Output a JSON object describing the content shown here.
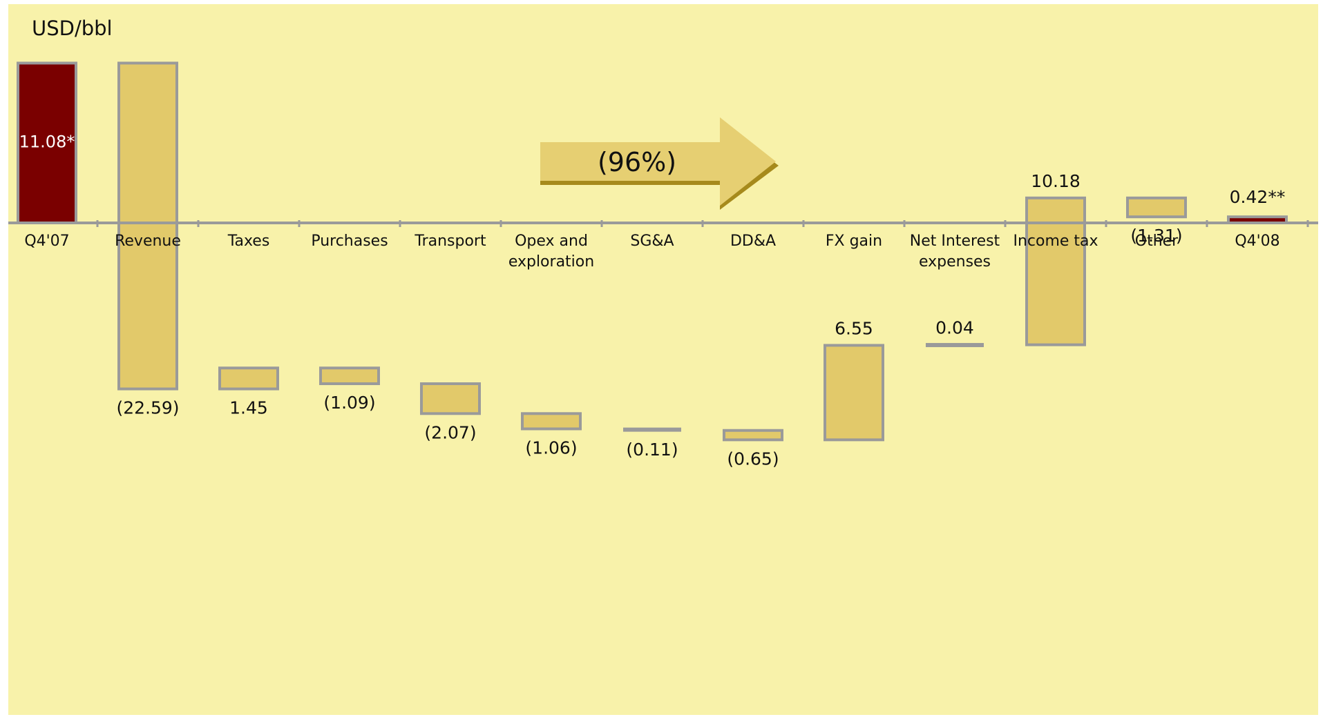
{
  "unit_label": "USD/bbl",
  "change_label": "(96%)",
  "colors": {
    "background": "#f8f2aa",
    "total_bar": "#7a0000",
    "delta_bar": "#e2c96a",
    "bar_outline": "#9a9a9a",
    "arrow_fill": "#e6cf72",
    "arrow_shadow": "#a68a1c"
  },
  "chart_data": {
    "type": "bar",
    "subtype": "waterfall",
    "ylabel": "USD/bbl",
    "categories": [
      [
        "Q4'07"
      ],
      [
        "Revenue"
      ],
      [
        "Taxes"
      ],
      [
        "Purchases"
      ],
      [
        "Transport"
      ],
      [
        "Opex and",
        "exploration"
      ],
      [
        "SG&A"
      ],
      [
        "DD&A"
      ],
      [
        "FX gain"
      ],
      [
        "Net Interest",
        "expenses"
      ],
      [
        "Income tax"
      ],
      [
        "Other"
      ],
      [
        "Q4'08"
      ]
    ],
    "bars": [
      {
        "kind": "total",
        "start": 0,
        "end": 11.08,
        "label": "11.08*"
      },
      {
        "kind": "delta",
        "start": 11.08,
        "end": -11.51,
        "label": "(22.59)"
      },
      {
        "kind": "delta",
        "start": -10.06,
        "end": -11.51,
        "label": "1.45"
      },
      {
        "kind": "delta",
        "start": -10.06,
        "end": -11.15,
        "label": "(1.09)"
      },
      {
        "kind": "delta",
        "start": -11.15,
        "end": -13.22,
        "label": "(2.07)"
      },
      {
        "kind": "delta",
        "start": -13.22,
        "end": -14.28,
        "label": "(1.06)"
      },
      {
        "kind": "delta",
        "start": -14.28,
        "end": -14.39,
        "label": "(0.11)"
      },
      {
        "kind": "delta",
        "start": -14.39,
        "end": -15.04,
        "label": "(0.65)"
      },
      {
        "kind": "delta",
        "start": -15.04,
        "end": -8.49,
        "label": "6.55"
      },
      {
        "kind": "delta",
        "start": -8.49,
        "end": -8.45,
        "label": "0.04"
      },
      {
        "kind": "delta",
        "start": -8.45,
        "end": 1.73,
        "label": "10.18"
      },
      {
        "kind": "delta",
        "start": 1.73,
        "end": 0.42,
        "label": "(1.31)"
      },
      {
        "kind": "total",
        "start": 0,
        "end": 0.42,
        "label": "0.42**"
      }
    ],
    "ylim": [
      -25,
      13
    ],
    "grid": false,
    "legend": "none"
  }
}
